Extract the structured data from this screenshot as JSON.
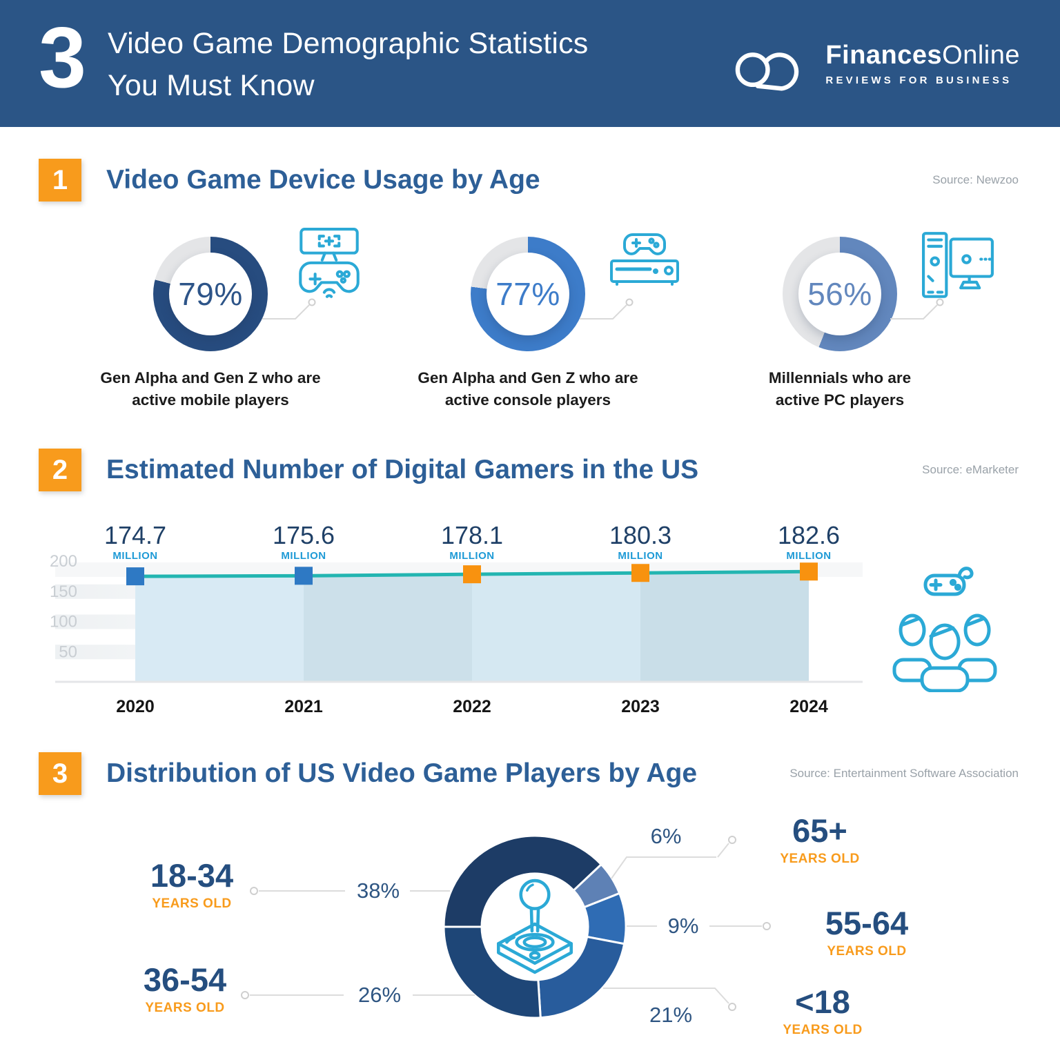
{
  "header": {
    "badge": "3",
    "title_line1": "Video Game Demographic Statistics",
    "title_line2": "You Must Know",
    "logo": {
      "brand_bold": "Finances",
      "brand_light": "Online",
      "tagline": "REVIEWS FOR BUSINESS"
    }
  },
  "sections": [
    {
      "number": "1",
      "title": "Video Game Device Usage by Age",
      "source": "Source: Newzoo"
    },
    {
      "number": "2",
      "title": "Estimated Number of Digital Gamers in the US",
      "source": "Source: eMarketer"
    },
    {
      "number": "3",
      "title": "Distribution of US Video Game Players by Age",
      "source": "Source: Entertainment Software Association"
    }
  ],
  "colors": {
    "header_bg": "#2b5586",
    "accent_orange": "#f89b1c",
    "section_title_blue": "#2d5f97",
    "navy_text": "#254e7f",
    "icon_cyan": "#2ba9d6",
    "connector_gray": "#d9d9d9"
  },
  "chart_data": [
    {
      "type": "donut-gauge-set",
      "title": "Video Game Device Usage by Age",
      "source": "Source: Newzoo",
      "unit": "%",
      "track_color": "#e4e5e7",
      "items": [
        {
          "value": 79,
          "value_label": "79%",
          "ring_color": "#274c7f",
          "text_color": "#2d5488",
          "icon": "mobile-gaming-icon",
          "label_line1": "Gen Alpha and Gen Z who are",
          "label_line2": "active mobile players"
        },
        {
          "value": 77,
          "value_label": "77%",
          "ring_color": "#3d7cc9",
          "text_color": "#3d7cc9",
          "icon": "game-console-icon",
          "label_line1": "Gen Alpha and Gen Z who are",
          "label_line2": "active console players"
        },
        {
          "value": 56,
          "value_label": "56%",
          "ring_color": "#6287bd",
          "text_color": "#6287bd",
          "icon": "desktop-pc-icon",
          "label_line1": "Millennials who are",
          "label_line2": "active PC players"
        }
      ]
    },
    {
      "type": "area-line",
      "title": "Estimated Number of Digital Gamers in the US",
      "source": "Source: eMarketer",
      "x": [
        "2020",
        "2021",
        "2022",
        "2023",
        "2024"
      ],
      "values": [
        174.7,
        175.6,
        178.1,
        180.3,
        182.6
      ],
      "value_labels": [
        "174.7",
        "175.6",
        "178.1",
        "180.3",
        "182.6"
      ],
      "unit_label": "MILLION",
      "ylim": [
        0,
        200
      ],
      "yticks": [
        50,
        100,
        150,
        200
      ],
      "grid": "faint horizontal bands",
      "legend": "none",
      "line_color": "#23b5b1",
      "marker_colors": [
        "#2e79c4",
        "#2e79c4",
        "#f8920f",
        "#f8920f",
        "#f8920f"
      ],
      "area_colors": [
        "#d8eaf4",
        "#cce0ea",
        "#d5e8f2",
        "#c9dee8"
      ],
      "number_color": "#1f4067",
      "unit_color": "#1e9ad6",
      "tick_color": "#c9ced3",
      "year_color": "#151515"
    },
    {
      "type": "donut",
      "title": "Distribution of US Video Game Players by Age",
      "source": "Source: Entertainment Software Association",
      "start_angle_deg": 270,
      "segments": [
        {
          "pct": 38,
          "pct_label": "38%",
          "age": "18-34",
          "age_sub": "YEARS OLD",
          "color": "#1d3c66"
        },
        {
          "pct": 6,
          "pct_label": "6%",
          "age": "65+",
          "age_sub": "YEARS OLD",
          "color": "#5e81b5"
        },
        {
          "pct": 9,
          "pct_label": "9%",
          "age": "55-64",
          "age_sub": "YEARS OLD",
          "color": "#2f6cb4"
        },
        {
          "pct": 21,
          "pct_label": "21%",
          "age": "<18",
          "age_sub": "YEARS OLD",
          "color": "#285c9c"
        },
        {
          "pct": 26,
          "pct_label": "26%",
          "age": "36-54",
          "age_sub": "YEARS OLD",
          "color": "#1e4677"
        }
      ]
    }
  ]
}
